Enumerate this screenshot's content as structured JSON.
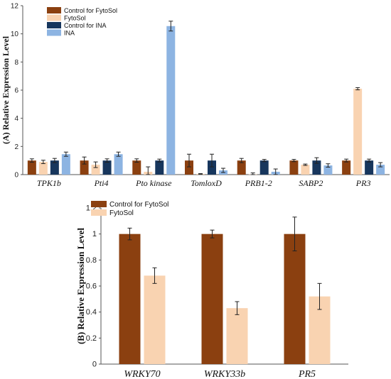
{
  "chart_data": [
    {
      "type": "bar",
      "ylabel": "(A) Relative Expression Level",
      "ylim": [
        0,
        12
      ],
      "yticks": [
        0,
        2,
        4,
        6,
        8,
        10,
        12
      ],
      "categories": [
        "TPK1b",
        "Pti4",
        "Pto kinase",
        "TomloxD",
        "PRB1-2",
        "SABP2",
        "PR3"
      ],
      "legend_position": "top-left",
      "grid": false,
      "series": [
        {
          "name": "Control for FytoSol",
          "color": "#8b4010",
          "values": [
            1.0,
            1.0,
            1.0,
            1.0,
            1.0,
            1.0,
            1.0
          ],
          "errors": [
            0.12,
            0.25,
            0.12,
            0.45,
            0.15,
            0.08,
            0.1
          ]
        },
        {
          "name": "FytoSol",
          "color": "#f9d3b1",
          "values": [
            0.9,
            0.7,
            0.2,
            0.05,
            0.02,
            0.7,
            6.1
          ],
          "errors": [
            0.12,
            0.2,
            0.35,
            0.02,
            0.1,
            0.05,
            0.08
          ]
        },
        {
          "name": "Control for INA",
          "color": "#17365d",
          "values": [
            1.0,
            1.0,
            1.0,
            1.0,
            1.0,
            1.0,
            1.0
          ],
          "errors": [
            0.15,
            0.12,
            0.1,
            0.45,
            0.08,
            0.2,
            0.1
          ]
        },
        {
          "name": "INA",
          "color": "#8db4e2",
          "values": [
            1.45,
            1.45,
            10.55,
            0.3,
            0.2,
            0.65,
            0.7
          ],
          "errors": [
            0.15,
            0.15,
            0.35,
            0.15,
            0.2,
            0.12,
            0.15
          ]
        }
      ]
    },
    {
      "type": "bar",
      "ylabel": "(B) Relative Expression Level",
      "ylim": [
        0,
        1.2
      ],
      "yticks": [
        "0",
        "0.2",
        "0.4",
        "0.6",
        "0.8",
        "1",
        "1.2"
      ],
      "categories": [
        "WRKY70",
        "WRKY33b",
        "PR5"
      ],
      "legend_position": "top-left",
      "grid": false,
      "series": [
        {
          "name": "Control for FytoSol",
          "color": "#8b4010",
          "values": [
            1.0,
            1.0,
            1.0
          ],
          "errors": [
            0.045,
            0.03,
            0.13
          ]
        },
        {
          "name": "FytoSol",
          "color": "#f9d3b1",
          "values": [
            0.68,
            0.43,
            0.52
          ],
          "errors": [
            0.06,
            0.05,
            0.1
          ]
        }
      ]
    }
  ]
}
